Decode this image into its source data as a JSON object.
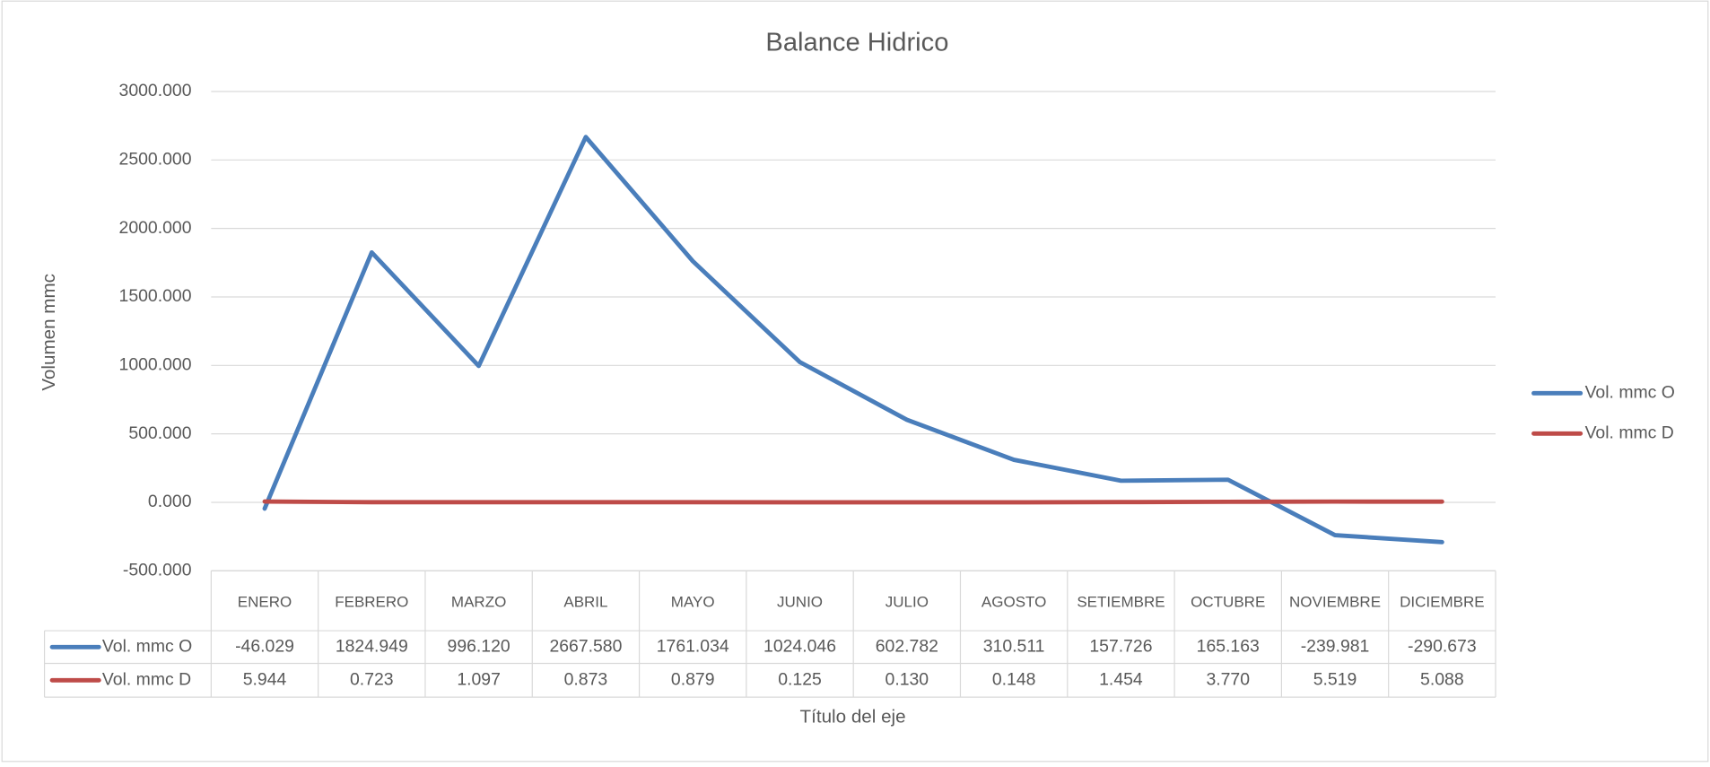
{
  "chart_data": {
    "type": "line",
    "title": "Balance Hidrico",
    "y_axis_label": "Volumen mmc",
    "x_axis_label": "Título del eje",
    "categories": [
      "ENERO",
      "FEBRERO",
      "MARZO",
      "ABRIL",
      "MAYO",
      "JUNIO",
      "JULIO",
      "AGOSTO",
      "SETIEMBRE",
      "OCTUBRE",
      "NOVIEMBRE",
      "DICIEMBRE"
    ],
    "series": [
      {
        "name": "Vol. mmc O",
        "color": "#4a7ebb",
        "values": [
          -46.029,
          1824.949,
          996.12,
          2667.58,
          1761.034,
          1024.046,
          602.782,
          310.511,
          157.726,
          165.163,
          -239.981,
          -290.673
        ],
        "value_labels": [
          "-46.029",
          "1824.949",
          "996.120",
          "2667.580",
          "1761.034",
          "1024.046",
          "602.782",
          "310.511",
          "157.726",
          "165.163",
          "-239.981",
          "-290.673"
        ]
      },
      {
        "name": "Vol. mmc D",
        "color": "#be4b48",
        "values": [
          5.944,
          0.723,
          1.097,
          0.873,
          0.879,
          0.125,
          0.13,
          0.148,
          1.454,
          3.77,
          5.519,
          5.088
        ],
        "value_labels": [
          "5.944",
          "0.723",
          "1.097",
          "0.873",
          "0.879",
          "0.125",
          "0.130",
          "0.148",
          "1.454",
          "3.770",
          "5.519",
          "5.088"
        ]
      }
    ],
    "ylim": [
      -500,
      3000
    ],
    "yticks": [
      {
        "value": -500,
        "label": "-500.000"
      },
      {
        "value": 0,
        "label": "0.000"
      },
      {
        "value": 500,
        "label": "500.000"
      },
      {
        "value": 1000,
        "label": "1000.000"
      },
      {
        "value": 1500,
        "label": "1500.000"
      },
      {
        "value": 2000,
        "label": "2000.000"
      },
      {
        "value": 2500,
        "label": "2500.000"
      },
      {
        "value": 3000,
        "label": "3000.000"
      }
    ],
    "grid": true,
    "legend": "right"
  }
}
